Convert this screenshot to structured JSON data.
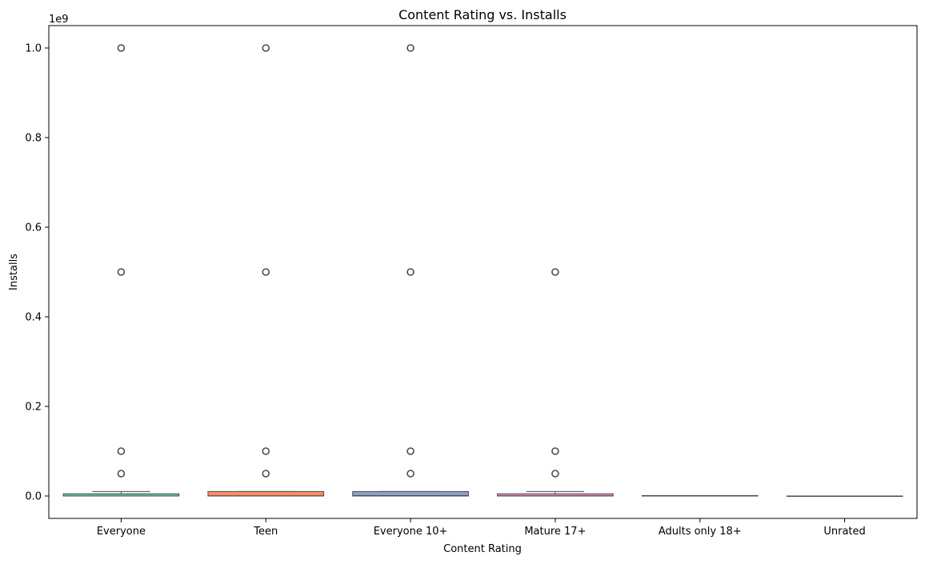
{
  "chart_data": {
    "type": "box",
    "title": "Content Rating vs. Installs",
    "xlabel": "Content Rating",
    "ylabel": "Installs",
    "y_offset_label": "1e9",
    "y_scale": 1000000000,
    "ylim": [
      -50000000,
      1050000000
    ],
    "yticks": [
      0,
      200000000,
      400000000,
      600000000,
      800000000,
      1000000000
    ],
    "ytick_labels": [
      "0.0",
      "0.2",
      "0.4",
      "0.6",
      "0.8",
      "1.0"
    ],
    "grid": false,
    "categories": [
      "Everyone",
      "Teen",
      "Everyone 10+",
      "Mature 17+",
      "Adults only 18+",
      "Unrated"
    ],
    "boxes": [
      {
        "name": "Everyone",
        "color": "#66c2a5",
        "whisker_low": 0,
        "q1": 1000,
        "median": 100000,
        "q3": 5000000,
        "whisker_high": 10000000,
        "outliers": [
          50000000,
          100000000,
          500000000,
          1000000000
        ]
      },
      {
        "name": "Teen",
        "color": "#fc8d62",
        "whisker_low": 0,
        "q1": 10000,
        "median": 500000,
        "q3": 10000000,
        "whisker_high": 10000000,
        "outliers": [
          50000000,
          100000000,
          500000000,
          1000000000
        ]
      },
      {
        "name": "Everyone 10+",
        "color": "#8da0cb",
        "whisker_low": 0,
        "q1": 10000,
        "median": 1000000,
        "q3": 10000000,
        "whisker_high": 10000000,
        "outliers": [
          50000000,
          100000000,
          500000000,
          1000000000
        ]
      },
      {
        "name": "Mature 17+",
        "color": "#e78ac3",
        "whisker_low": 0,
        "q1": 5000,
        "median": 500000,
        "q3": 5000000,
        "whisker_high": 10000000,
        "outliers": [
          50000000,
          100000000,
          500000000
        ]
      },
      {
        "name": "Adults only 18+",
        "color": "#a6d854",
        "whisker_low": 500000,
        "q1": 750000,
        "median": 1000000,
        "q3": 1000000,
        "whisker_high": 1000000,
        "outliers": []
      },
      {
        "name": "Unrated",
        "color": "#ffd92f",
        "whisker_low": 0,
        "q1": 0,
        "median": 25000,
        "q3": 50000,
        "whisker_high": 50000,
        "outliers": []
      }
    ]
  }
}
